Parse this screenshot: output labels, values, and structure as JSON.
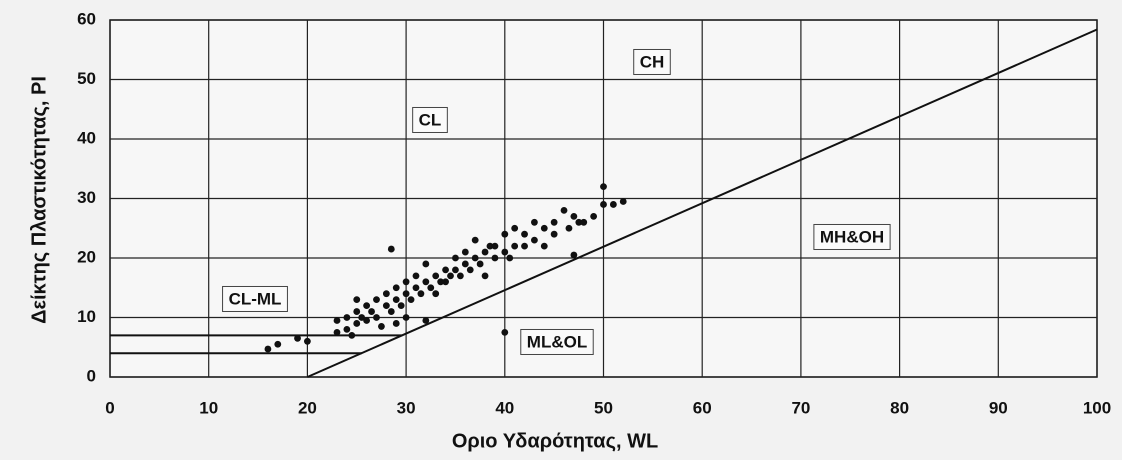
{
  "chart_data": {
    "type": "scatter",
    "xlabel": "Οριο Υδαρότητας, WL",
    "ylabel": "Δείκτης Πλαστικότητας, PI",
    "xlim": [
      0,
      100
    ],
    "ylim": [
      0,
      60
    ],
    "xticks": [
      0,
      10,
      20,
      30,
      40,
      50,
      60,
      70,
      80,
      90,
      100
    ],
    "yticks": [
      0,
      10,
      20,
      30,
      40,
      50,
      60
    ],
    "grid": true,
    "color": "#111111",
    "x": [
      16,
      17,
      19,
      20,
      23,
      23,
      24,
      24,
      24.5,
      25,
      25,
      25,
      25.5,
      26,
      26,
      26.5,
      27,
      27,
      27.5,
      28,
      28,
      28.5,
      28.5,
      29,
      29,
      29,
      29.5,
      30,
      30,
      30,
      30.5,
      31,
      31,
      31.5,
      32,
      32,
      32,
      32.5,
      33,
      33,
      33.5,
      34,
      34,
      34.5,
      35,
      35,
      35.5,
      36,
      36,
      36.5,
      37,
      37,
      37.5,
      38,
      38,
      38.5,
      39,
      39,
      40,
      40,
      40,
      40.5,
      41,
      41,
      42,
      42,
      43,
      43,
      44,
      44,
      45,
      45,
      46,
      46.5,
      47,
      47,
      47.5,
      48,
      49,
      50,
      50,
      51,
      52
    ],
    "y": [
      4.7,
      5.5,
      6.5,
      6,
      7.5,
      9.5,
      8,
      10,
      7,
      9,
      11,
      13,
      10,
      9.5,
      12,
      11,
      10,
      13,
      8.5,
      12,
      14,
      21.5,
      11,
      13,
      15,
      9,
      12,
      14,
      16,
      10,
      13,
      15,
      17,
      14,
      16,
      19,
      9.5,
      15,
      17,
      14,
      16,
      16,
      18,
      17,
      18,
      20,
      17,
      19,
      21,
      18,
      20,
      23,
      19,
      21,
      17,
      22,
      20,
      22,
      21,
      24,
      7.5,
      20,
      22,
      25,
      22,
      24,
      23,
      26,
      25,
      22,
      26,
      24,
      28,
      25,
      27,
      20.5,
      26,
      26,
      27,
      29,
      32,
      29,
      29.5
    ],
    "reference_lines": [
      {
        "x": [
          20,
          100
        ],
        "y": [
          0,
          58.4
        ]
      },
      {
        "x": [
          0,
          29.6
        ],
        "y": [
          7,
          7
        ]
      },
      {
        "x": [
          0,
          25.5
        ],
        "y": [
          4,
          4
        ]
      }
    ],
    "annotations": [
      "CH",
      "CL",
      "CL-ML",
      "MH&OH",
      "ML&OL"
    ]
  }
}
